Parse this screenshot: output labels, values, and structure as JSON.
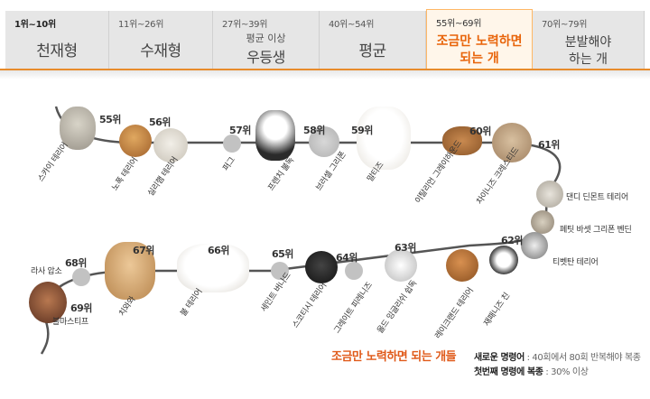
{
  "tabs": [
    {
      "range": "1위~10위",
      "title": "천재형"
    },
    {
      "range": "11위~26위",
      "title": "수재형"
    },
    {
      "range": "27위~39위",
      "sub": "평균 이상",
      "title": "우등생"
    },
    {
      "range": "40위~54위",
      "title": "평균"
    },
    {
      "range": "55위~69위",
      "line1": "조금만 노력하면",
      "line2": "되는 개"
    },
    {
      "range": "70위~79위",
      "line1": "분발해야",
      "line2": "하는 개"
    }
  ],
  "dogs": [
    {
      "rank": "55위",
      "name": "스카이 테리어"
    },
    {
      "rank": "56위",
      "name": "노폭 테리어"
    },
    {
      "rank": "",
      "name": "실리햄 테리어"
    },
    {
      "rank": "57위",
      "name": "퍼그"
    },
    {
      "rank": "58위",
      "name": "프렌치 불독"
    },
    {
      "rank": "",
      "name": "브러셀 그리폰"
    },
    {
      "rank": "59위",
      "name": "말티즈"
    },
    {
      "rank": "60위",
      "name": "이탈리언 그레이하운드"
    },
    {
      "rank": "",
      "name": "차이니즈 크레스티드"
    },
    {
      "rank": "61위",
      "name": "댄디 딘몬트 테리어"
    },
    {
      "rank": "",
      "name": "페팃 바셋 그리폰 벤딘"
    },
    {
      "rank": "",
      "name": "티벳탄 테리어"
    },
    {
      "rank": "62위",
      "name": "재패니즈 친"
    },
    {
      "rank": "",
      "name": "레이크랜드 테리어"
    },
    {
      "rank": "63위",
      "name": "올드 잉글리쉬 쉽독"
    },
    {
      "rank": "64위",
      "name": "그레이트 피레니즈"
    },
    {
      "rank": "",
      "name": "스코티시 테리어"
    },
    {
      "rank": "65위",
      "name": "세인트 버나드"
    },
    {
      "rank": "66위",
      "name": "불 테리어"
    },
    {
      "rank": "67위",
      "name": "치와와"
    },
    {
      "rank": "68위",
      "name": "라사 압소"
    },
    {
      "rank": "69위",
      "name": "불마스티프"
    }
  ],
  "legend": {
    "title": "조금만 노력하면 되는 개들",
    "row1_key": "새로운 명령어",
    "row1_val": ": 40회에서 80회 반복해야 복종",
    "row2_key": "첫번째 명령에 복종",
    "row2_val": ": 30% 이상"
  },
  "colors": {
    "accent": "#e8640a",
    "track": "#555555",
    "node": "#c2c2c2"
  }
}
